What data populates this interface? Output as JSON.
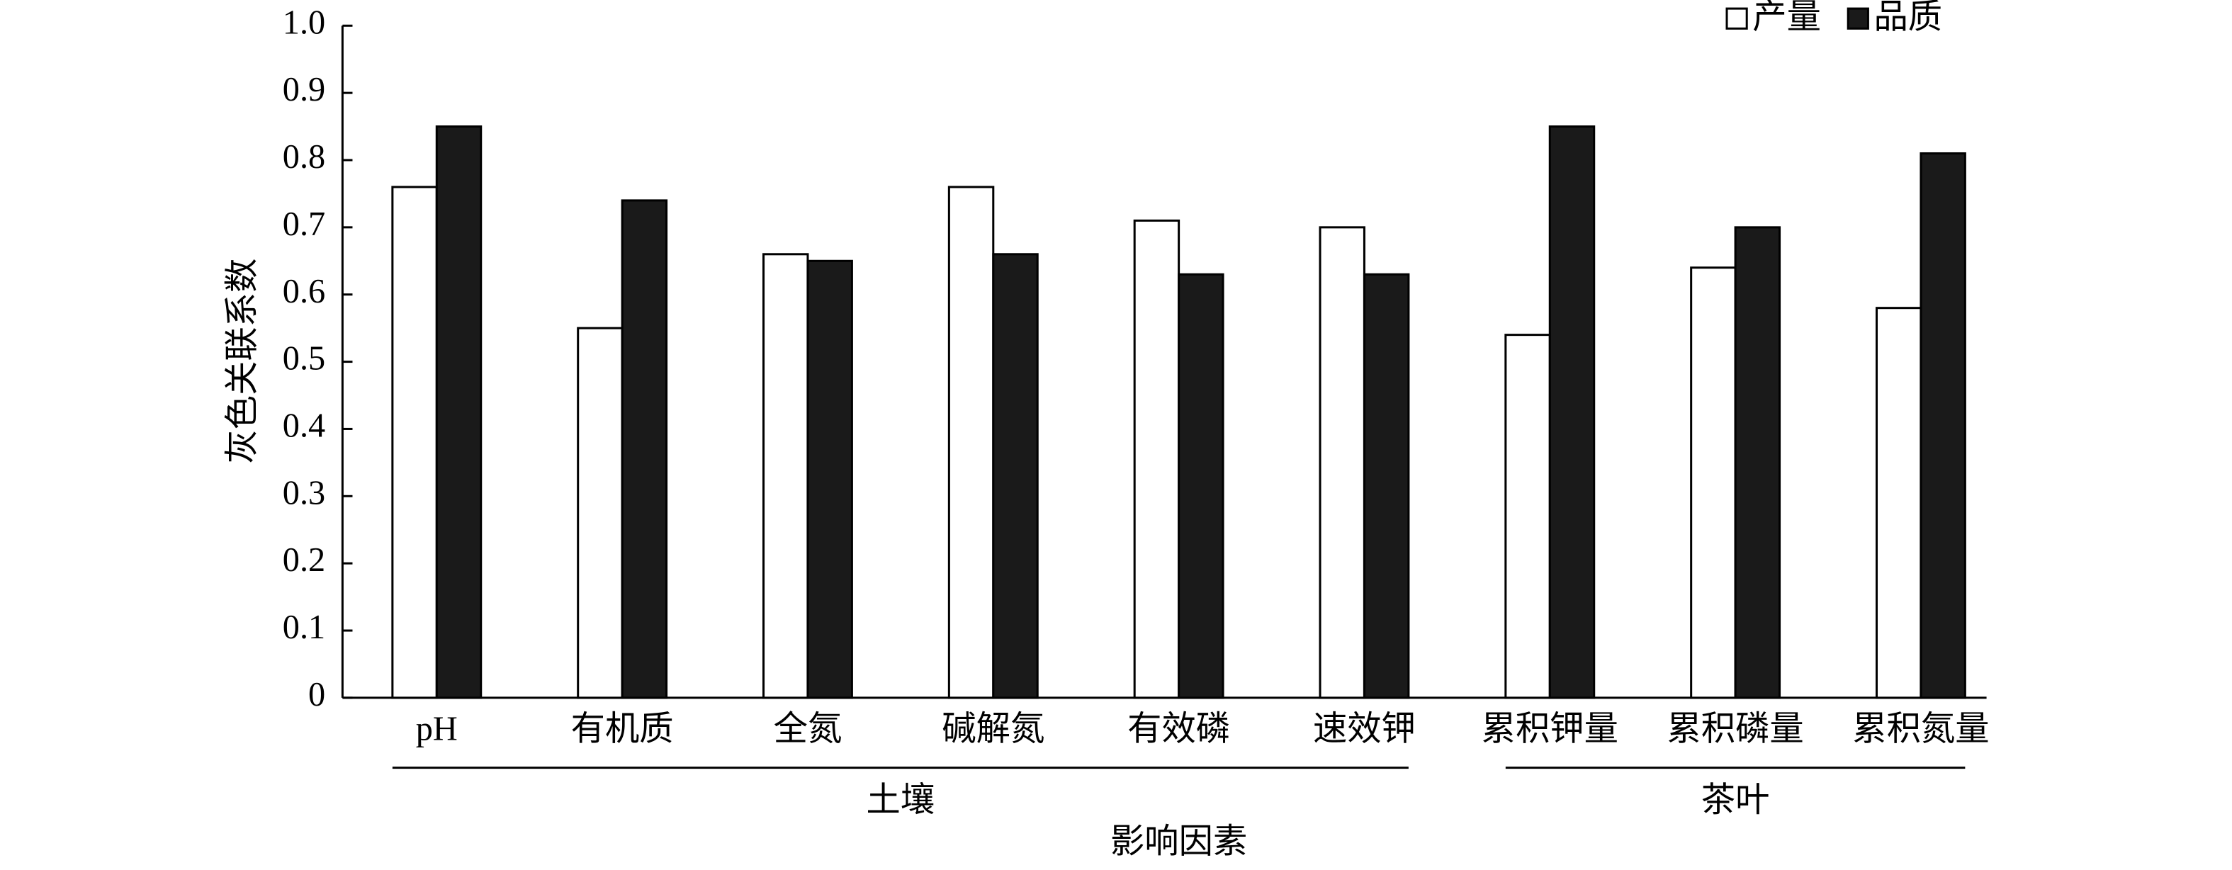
{
  "chart_data": {
    "type": "bar",
    "y_label": "灰色关联系数",
    "x_label": "影响因素",
    "categories": [
      "pH",
      "有机质",
      "全氮",
      "碱解氮",
      "有效磷",
      "速效钾",
      "累积钾量",
      "累积磷量",
      "累积氮量"
    ],
    "groups": [
      {
        "label": "土壤"
      },
      {
        "label": "茶叶"
      }
    ],
    "series": [
      {
        "name": "产量",
        "color": "#ffffff",
        "values": [
          0.76,
          0.55,
          0.66,
          0.76,
          0.71,
          0.7,
          0.54,
          0.64,
          0.58
        ]
      },
      {
        "name": "品质",
        "color": "#1a1a1a",
        "values": [
          0.85,
          0.74,
          0.65,
          0.66,
          0.63,
          0.63,
          0.85,
          0.7,
          0.81
        ]
      }
    ],
    "ylim": [
      0,
      1
    ],
    "yticks": [
      0,
      0.1,
      0.2,
      0.3,
      0.4,
      0.5,
      0.6,
      0.7,
      0.8,
      0.9,
      {
        "value": 1,
        "label": "1.0"
      }
    ],
    "legend": "top-right"
  }
}
